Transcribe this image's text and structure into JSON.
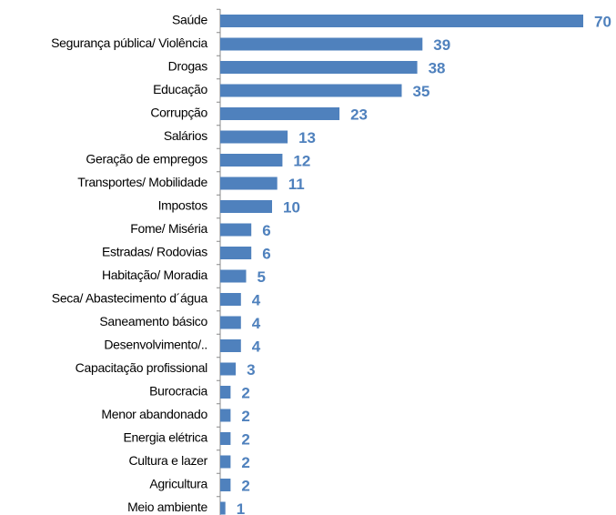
{
  "chart_data": {
    "type": "bar",
    "orientation": "horizontal",
    "color": "#4f81bd",
    "categories": [
      "Saúde",
      "Segurança pública/ Violência",
      "Drogas",
      "Educação",
      "Corrupção",
      "Salários",
      "Geração de empregos",
      "Transportes/ Mobilidade",
      "Impostos",
      "Fome/ Miséria",
      "Estradas/ Rodovias",
      "Habitação/ Moradia",
      "Seca/ Abastecimento d´água",
      "Saneamento básico",
      "Desenvolvimento/..",
      "Capacitação profissional",
      "Burocracia",
      "Menor abandonado",
      "Energia elétrica",
      "Cultura e lazer",
      "Agricultura",
      "Meio ambiente"
    ],
    "values": [
      70,
      39,
      38,
      35,
      23,
      13,
      12,
      11,
      10,
      6,
      6,
      5,
      4,
      4,
      4,
      3,
      2,
      2,
      2,
      2,
      2,
      1
    ]
  }
}
